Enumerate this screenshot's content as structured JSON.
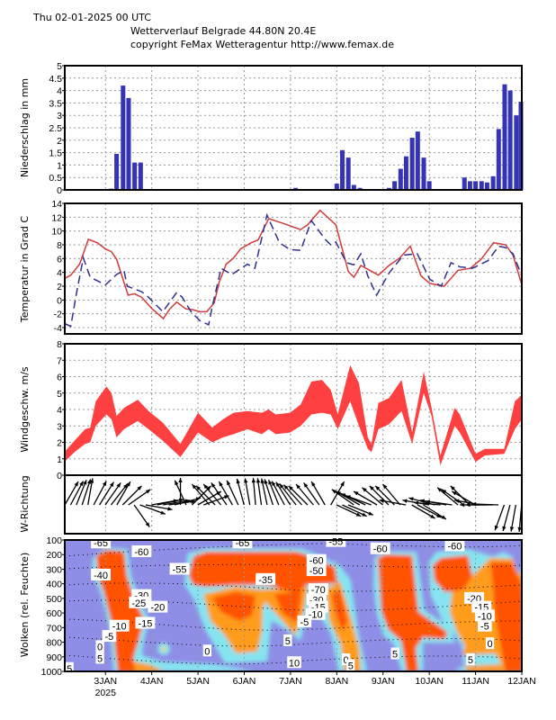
{
  "header": {
    "datetime": "Thu 02-01-2025 00 UTC",
    "title": "Wetterverlauf Belgrade  44.80N 20.4E",
    "copyright": "copyright FeMax Wetteragentur http://www.femax.de"
  },
  "x_axis": {
    "labels": [
      "3JAN",
      "4JAN",
      "5JAN",
      "6JAN",
      "7JAN",
      "8JAN",
      "9JAN",
      "10JAN",
      "11JAN",
      "12JAN"
    ],
    "year": "2025",
    "range_days": [
      2.12,
      12.0
    ]
  },
  "colors": {
    "precip": "#3434b4",
    "temp_red": "#d03c3c",
    "temp_blue": "#303090",
    "wind": "#ff4040",
    "cloud_bg": "#8e8ee6"
  },
  "chart_data": [
    {
      "type": "bar",
      "ylabel": "Niederschlag in mm",
      "ylim": [
        0,
        5
      ],
      "yticks": [
        "0",
        "0.5",
        "1",
        "1.5",
        "2",
        "2.5",
        "3",
        "3.5",
        "4",
        "4.5",
        "5"
      ],
      "x": [
        3.12,
        3.24,
        3.38,
        3.5,
        3.63,
        3.76,
        7.11,
        8.0,
        8.12,
        8.25,
        8.37,
        8.5,
        9.13,
        9.25,
        9.38,
        9.5,
        9.63,
        9.75,
        9.88,
        10.0,
        10.76,
        10.88,
        11.0,
        11.13,
        11.25,
        11.38,
        11.5,
        11.63,
        11.75,
        11.88,
        11.98
      ],
      "values": [
        0.05,
        1.45,
        4.2,
        3.7,
        1.1,
        1.1,
        0.08,
        0.25,
        1.6,
        1.3,
        0.2,
        0.08,
        0.08,
        0.35,
        0.85,
        1.35,
        2.1,
        2.35,
        1.3,
        0.35,
        0.5,
        0.35,
        0.35,
        0.35,
        0.3,
        0.55,
        2.45,
        4.25,
        4.0,
        3.0,
        3.55
      ]
    },
    {
      "type": "line",
      "ylabel": "Temperatur in Grad C",
      "ylim": [
        -5,
        14
      ],
      "yticks": [
        "-4",
        "-2",
        "0",
        "2",
        "4",
        "6",
        "8",
        "10",
        "12",
        "14"
      ],
      "series": [
        {
          "name": "red",
          "x": [
            2.11,
            2.25,
            2.44,
            2.63,
            2.82,
            3.0,
            3.13,
            3.24,
            3.49,
            3.63,
            3.78,
            4.01,
            4.25,
            4.39,
            4.54,
            4.74,
            4.89,
            5.04,
            5.19,
            5.35,
            5.46,
            5.61,
            5.77,
            5.92,
            6.15,
            6.3,
            6.53,
            6.84,
            7.22,
            7.37,
            7.64,
            7.98,
            8.25,
            8.37,
            8.52,
            8.9,
            9.13,
            9.36,
            9.59,
            9.82,
            10.01,
            10.32,
            10.62,
            10.89,
            11.12,
            11.39,
            11.65,
            11.81,
            12.0
          ],
          "values": [
            3.1,
            3.6,
            5.2,
            8.8,
            8.3,
            7.4,
            7.0,
            5.9,
            0.7,
            0.9,
            0.4,
            -1.3,
            -2.7,
            -1.3,
            -0.3,
            -1.3,
            -1.4,
            -1.7,
            -1.7,
            -0.4,
            2.6,
            5.2,
            6.1,
            7.4,
            8.3,
            8.7,
            11.8,
            11.1,
            10.2,
            10.9,
            13.0,
            10.9,
            4.1,
            3.3,
            5.0,
            3.6,
            5.0,
            6.1,
            7.8,
            3.5,
            2.4,
            2.0,
            4.3,
            4.6,
            5.9,
            8.3,
            8.0,
            6.5,
            2.2
          ]
        },
        {
          "name": "blue-dashed",
          "x": [
            2.11,
            2.25,
            2.37,
            2.52,
            2.67,
            3.0,
            3.24,
            3.4,
            3.47,
            3.78,
            3.93,
            4.24,
            4.54,
            4.66,
            4.85,
            5.04,
            5.23,
            5.31,
            5.5,
            5.73,
            6.07,
            6.23,
            6.49,
            6.76,
            6.99,
            7.22,
            7.45,
            7.76,
            7.87,
            7.98,
            8.21,
            8.37,
            8.52,
            8.67,
            8.86,
            9.13,
            9.44,
            9.74,
            10.01,
            10.26,
            10.47,
            10.66,
            10.93,
            11.27,
            11.5,
            11.65,
            11.81,
            12.0
          ],
          "values": [
            -3.4,
            -3.8,
            0.9,
            6.1,
            3.3,
            2.2,
            3.7,
            4.3,
            2.0,
            1.2,
            0.4,
            -1.7,
            1.1,
            0.4,
            -1.7,
            -3.0,
            -3.6,
            -0.9,
            4.6,
            3.7,
            5.2,
            4.6,
            12.3,
            8.3,
            7.3,
            7.2,
            11.5,
            8.7,
            8.0,
            8.4,
            5.4,
            5.1,
            6.7,
            3.5,
            0.7,
            3.9,
            6.5,
            6.7,
            3.0,
            2.0,
            5.4,
            4.8,
            4.6,
            5.7,
            7.8,
            7.6,
            6.7,
            3.5
          ]
        }
      ]
    },
    {
      "type": "area",
      "ylabel": "Windgeschw. m/s",
      "ylim": [
        0,
        8
      ],
      "yticks": [
        "0",
        "1",
        "2",
        "3",
        "4",
        "5",
        "6",
        "7",
        "8"
      ],
      "x": [
        2.11,
        2.33,
        2.56,
        2.67,
        2.79,
        3.02,
        3.13,
        3.24,
        3.4,
        3.7,
        3.93,
        4.24,
        4.62,
        5.0,
        5.31,
        5.54,
        5.77,
        6.07,
        6.38,
        6.53,
        6.68,
        6.99,
        7.22,
        7.45,
        7.68,
        7.87,
        8.02,
        8.29,
        8.48,
        8.67,
        8.75,
        8.9,
        9.13,
        9.4,
        9.63,
        9.88,
        10.05,
        10.24,
        10.55,
        10.66,
        11.0,
        11.2,
        11.62,
        11.85,
        12.0
      ],
      "upper": [
        1.4,
        2.1,
        2.8,
        2.9,
        4.5,
        5.4,
        5.0,
        3.6,
        4.1,
        4.6,
        3.9,
        3.2,
        1.9,
        3.8,
        2.9,
        3.4,
        3.8,
        3.9,
        3.8,
        4.0,
        3.7,
        3.8,
        4.3,
        5.7,
        5.8,
        5.2,
        3.7,
        6.7,
        5.6,
        2.3,
        1.9,
        4.4,
        4.7,
        5.8,
        2.6,
        6.3,
        4.1,
        1.2,
        4.1,
        3.7,
        1.3,
        1.6,
        1.6,
        4.5,
        4.9
      ],
      "lower": [
        0.8,
        1.4,
        1.9,
        2.0,
        3.0,
        3.7,
        3.4,
        2.3,
        2.8,
        3.3,
        2.8,
        2.1,
        1.1,
        2.6,
        2.0,
        2.3,
        2.5,
        2.8,
        2.5,
        2.8,
        2.5,
        2.6,
        3.0,
        3.7,
        3.8,
        3.7,
        2.8,
        4.5,
        3.0,
        1.6,
        1.4,
        2.8,
        3.1,
        3.9,
        1.9,
        5.0,
        3.6,
        0.6,
        3.0,
        2.6,
        0.8,
        1.2,
        1.3,
        2.8,
        3.4
      ]
    },
    {
      "type": "vector",
      "ylabel": "W-Richtung",
      "start_day": 2.12,
      "step_days": 0.125,
      "direction_deg": [
        30,
        28,
        22,
        18,
        10,
        28,
        32,
        35,
        38,
        30,
        45,
        55,
        145,
        110,
        100,
        80,
        78,
        80,
        82,
        75,
        0,
        -25,
        45,
        60,
        70,
        -40,
        -45,
        -40,
        -35,
        -30,
        -25,
        -15,
        -10,
        -5,
        -8,
        -12,
        -18,
        -22,
        -28,
        -32,
        -38,
        -42,
        -45,
        -40,
        -35,
        -30,
        30,
        115,
        115,
        112,
        -55,
        -60,
        -65,
        -70,
        -60,
        -50,
        -45,
        -45,
        -40,
        -80,
        120,
        118,
        122,
        -80,
        -75,
        -85,
        -80,
        -82,
        -50,
        -55,
        -45,
        -60,
        -80,
        -90,
        -90,
        -88,
        200,
        195,
        190,
        185
      ]
    },
    {
      "type": "heatmap",
      "ylabel": "Wolken (rel. Feuchte)",
      "ylim": [
        1000,
        100
      ],
      "yticks": [
        "100",
        "200",
        "300",
        "400",
        "500",
        "600",
        "700",
        "800",
        "900",
        "1000"
      ],
      "contour_labels": [
        {
          "text": "-65",
          "day": 2.9,
          "p": 120
        },
        {
          "text": "-60",
          "day": 3.78,
          "p": 180
        },
        {
          "text": "-40",
          "day": 2.9,
          "p": 340
        },
        {
          "text": "-55",
          "day": 4.6,
          "p": 300
        },
        {
          "text": "-30",
          "day": 3.78,
          "p": 480
        },
        {
          "text": "-25",
          "day": 3.72,
          "p": 530
        },
        {
          "text": "-20",
          "day": 4.13,
          "p": 560
        },
        {
          "text": "-15",
          "day": 3.86,
          "p": 670
        },
        {
          "text": "-10",
          "day": 3.3,
          "p": 690
        },
        {
          "text": "-5",
          "day": 3.08,
          "p": 760
        },
        {
          "text": "0",
          "day": 2.88,
          "p": 830
        },
        {
          "text": "5",
          "day": 2.88,
          "p": 910
        },
        {
          "text": "5",
          "day": 2.22,
          "p": 980
        },
        {
          "text": "-65",
          "day": 5.96,
          "p": 120
        },
        {
          "text": "-35",
          "day": 6.46,
          "p": 370
        },
        {
          "text": "0",
          "day": 5.2,
          "p": 860
        },
        {
          "text": "5",
          "day": 6.94,
          "p": 790
        },
        {
          "text": "10",
          "day": 7.08,
          "p": 940
        },
        {
          "text": "-55",
          "day": 7.98,
          "p": 110
        },
        {
          "text": "-60",
          "day": 8.94,
          "p": 160
        },
        {
          "text": "-60",
          "day": 10.55,
          "p": 140
        },
        {
          "text": "-60",
          "day": 7.56,
          "p": 240
        },
        {
          "text": "-50",
          "day": 7.56,
          "p": 310
        },
        {
          "text": "-70",
          "day": 7.6,
          "p": 440
        },
        {
          "text": "-30",
          "day": 7.56,
          "p": 510
        },
        {
          "text": "-15",
          "day": 7.6,
          "p": 560
        },
        {
          "text": "-10",
          "day": 7.54,
          "p": 610
        },
        {
          "text": "-5",
          "day": 7.3,
          "p": 660
        },
        {
          "text": "0",
          "day": 8.2,
          "p": 920
        },
        {
          "text": "5",
          "day": 8.3,
          "p": 960
        },
        {
          "text": "5",
          "day": 9.26,
          "p": 880
        },
        {
          "text": "-20",
          "day": 10.97,
          "p": 500
        },
        {
          "text": "-15",
          "day": 11.13,
          "p": 560
        },
        {
          "text": "-10",
          "day": 11.2,
          "p": 620
        },
        {
          "text": "-5",
          "day": 11.2,
          "p": 690
        },
        {
          "text": "0",
          "day": 11.31,
          "p": 810
        },
        {
          "text": "5",
          "day": 10.89,
          "p": 920
        }
      ]
    }
  ]
}
